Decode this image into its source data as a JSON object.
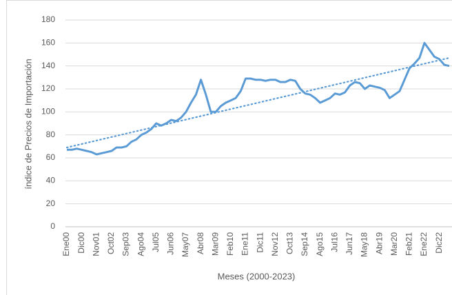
{
  "chart_data": {
    "type": "line",
    "ylabel": "índice de Precios de Importación",
    "xlabel": "Meses (2000-2023)",
    "categories": [
      "Ene00",
      null,
      null,
      "Dic00",
      null,
      null,
      "Nov01",
      null,
      null,
      "Oct02",
      null,
      null,
      "Sep03",
      null,
      null,
      "Ago04",
      null,
      null,
      "Jul05",
      null,
      null,
      "Jun06",
      null,
      null,
      "May07",
      null,
      null,
      "Abr08",
      null,
      null,
      "Mar09",
      null,
      null,
      "Feb10",
      null,
      null,
      "Ene11",
      null,
      null,
      "Dic11",
      null,
      null,
      "Nov12",
      null,
      null,
      "Oct13",
      null,
      null,
      "Sep14",
      null,
      null,
      "Ago15",
      null,
      null,
      "Jul16",
      null,
      null,
      "Jun17",
      null,
      null,
      "May18",
      null,
      null,
      "Abr19",
      null,
      null,
      "Mar20",
      null,
      null,
      "Feb21",
      null,
      null,
      "Ene22",
      null,
      null,
      "Dic22",
      null,
      null
    ],
    "series": [
      {
        "color": "#5b9bd5",
        "values": [
          67,
          67,
          68,
          67,
          66,
          65,
          63,
          64,
          65,
          66,
          69,
          69,
          70,
          74,
          76,
          80,
          82,
          85,
          90,
          88,
          90,
          93,
          92,
          95,
          100,
          108,
          115,
          128,
          115,
          100,
          100,
          105,
          108,
          110,
          112,
          118,
          129,
          129,
          128,
          128,
          127,
          128,
          128,
          126,
          126,
          128,
          127,
          120,
          116,
          115,
          112,
          108,
          110,
          112,
          116,
          115,
          117,
          123,
          126,
          125,
          120,
          123,
          122,
          121,
          119,
          112,
          115,
          118,
          128,
          138,
          142,
          147,
          160,
          154,
          148,
          146,
          141,
          140
        ]
      }
    ],
    "trendline": {
      "color": "#5b9bd5",
      "values": [
        69,
        147
      ]
    },
    "ylim": [
      0,
      180
    ],
    "yticks": [
      0,
      20,
      40,
      60,
      80,
      100,
      120,
      140,
      160,
      180
    ],
    "grid": true
  }
}
